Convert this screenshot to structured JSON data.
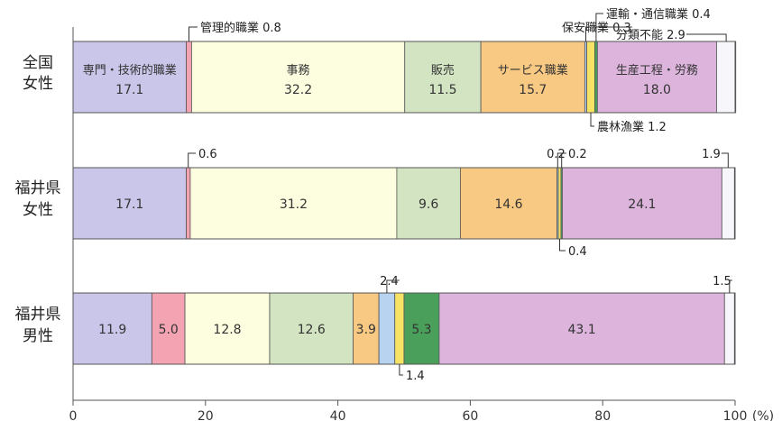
{
  "chart_data": {
    "type": "bar",
    "orientation": "horizontal",
    "stacked": true,
    "xlim": [
      0,
      100
    ],
    "x_ticks": [
      "0",
      "20",
      "40",
      "60",
      "80",
      "100"
    ],
    "x_unit": "(%)",
    "categories": [
      "専門・技術的職業",
      "管理的職業",
      "事務",
      "販売",
      "サービス職業",
      "保安職業",
      "農林漁業",
      "運輸・通信職業",
      "生産工程・労務",
      "分類不能"
    ],
    "colors": [
      "#c9c6ea",
      "#f4a3b3",
      "#fdfde0",
      "#d3e4c2",
      "#f8c983",
      "#b7d3ef",
      "#f6e366",
      "#4a9f5a",
      "#dcb4dc",
      "#f6f6fb"
    ],
    "rows": [
      {
        "label_lines": [
          "全国",
          "女性"
        ],
        "values": [
          17.1,
          0.8,
          32.2,
          11.5,
          15.7,
          0.3,
          1.2,
          0.4,
          18.0,
          2.9
        ],
        "segment_labels": [
          "専門・技術的職業\n17.1",
          "",
          "事務\n32.2",
          "販売\n11.5",
          "サービス職業\n15.7",
          "",
          "",
          "",
          "生産工程・労務\n18.0",
          ""
        ],
        "annotations": [
          "管理的職業 0.8",
          "保安職業 0.3",
          "運輸・通信職業 0.4",
          "分類不能 2.9",
          "農林漁業 1.2"
        ]
      },
      {
        "label_lines": [
          "福井県",
          "女性"
        ],
        "values": [
          17.1,
          0.6,
          31.2,
          9.6,
          14.6,
          0.2,
          0.4,
          0.2,
          24.1,
          1.9
        ],
        "segment_labels": [
          "17.1",
          "",
          "31.2",
          "9.6",
          "14.6",
          "",
          "",
          "",
          "24.1",
          ""
        ],
        "annotations": [
          "0.6",
          "0.2",
          "0.2",
          "1.9",
          "0.4"
        ]
      },
      {
        "label_lines": [
          "福井県",
          "男性"
        ],
        "values": [
          11.9,
          5.0,
          12.8,
          12.6,
          3.9,
          2.4,
          1.4,
          5.3,
          43.1,
          1.5
        ],
        "segment_labels": [
          "11.9",
          "5.0",
          "12.8",
          "12.6",
          "3.9",
          "",
          "",
          "5.3",
          "43.1",
          ""
        ],
        "annotations": [
          "2.4",
          "1.4",
          "1.5"
        ]
      }
    ]
  }
}
